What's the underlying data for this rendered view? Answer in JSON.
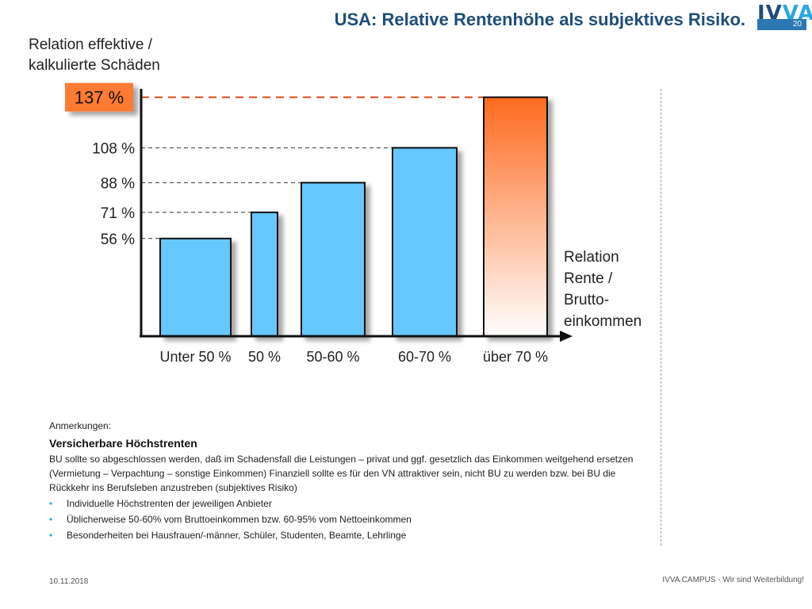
{
  "header": {
    "title": "USA: Relative Rentenhöhe als subjektives Risiko.",
    "logo_text_a": "IV",
    "logo_text_b": "VA",
    "page_number": "20",
    "brand_color": "#1f4e79",
    "accent_color": "#29a8e0"
  },
  "chart_data": {
    "type": "bar",
    "ylabel": "Relation effektive /\nkalkulierte Schäden",
    "xlabel": "Relation\nRente /\nBrutto-\neinkommen",
    "categories": [
      "Unter 50 %",
      "50 %",
      "50-60 %",
      "60-70 %",
      "über 70 %"
    ],
    "values": [
      56,
      71,
      88,
      108,
      137
    ],
    "value_labels": [
      "56 %",
      "71 %",
      "88 %",
      "108 %",
      "137 %"
    ],
    "highlight_index": 4,
    "colors": {
      "bar": "#66c8ff",
      "highlight_top": "#ff6a1f",
      "highlight_bottom": "#ffffff",
      "highlight_label_bg": "#ff7a33",
      "highlight_line": "#d84a1b"
    },
    "grid": false,
    "legend": "none"
  },
  "notes": {
    "caption": "Anmerkungen:",
    "heading": "Versicherbare Höchstrenten",
    "paragraph": "BU sollte so abgeschlossen werden, daß im Schadensfall die Leistungen – privat und ggf. gesetzlich das Einkommen weitgehend ersetzen (Vermietung – Verpachtung – sonstige Einkommen) Finanziell sollte es für den VN attraktiver sein, nicht BU zu werden bzw. bei BU die Rückkehr ins Berufsleben anzustreben (subjektives Risiko)",
    "bullet_char": "•",
    "bullets": [
      "Individuelle Höchstrenten der jeweiligen Anbieter",
      "Üblicherweise 50-60% vom Bruttoeinkommen bzw. 60-95% vom Nettoeinkommen",
      "Besonderheiten bei Hausfrauen/-männer, Schüler, Studenten, Beamte, Lehrlinge"
    ]
  },
  "footer": {
    "date": "10.11.2018",
    "tagline": "IVVA CAMPUS - Wir sind Weiterbildung!"
  }
}
